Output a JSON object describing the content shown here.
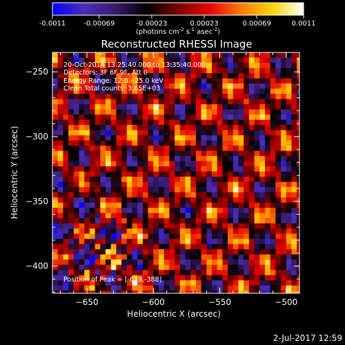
{
  "title": "Reconstructed RHESSI Image",
  "colorbar": {
    "ticks": [
      "-0.0011",
      "-0.00069",
      "-0.00023",
      "0.00023",
      "0.00069",
      "0.0011"
    ],
    "tick_values": [
      -0.0011,
      -0.00069,
      -0.00023,
      0.00023,
      0.00069,
      0.0011
    ],
    "range": [
      -0.0011,
      0.0011
    ],
    "unit_pre": "(photons cm",
    "unit_sup1": "-2",
    "unit_mid": " s",
    "unit_sup2": "-1",
    "unit_mid2": " asec",
    "unit_sup3": "-2",
    "unit_post": ")"
  },
  "annotations": {
    "time": "20-Oct-2014 13:25:40.000 to 13:35:40.000",
    "detectors": "Detectors: 3F 6F 9F, Att 0",
    "energy": "Energy Range: 12.0 - 25.0 keV",
    "clean": "Clean    Total counts: 3.65E+03",
    "peak": "Position of Peak = [-639,-388]"
  },
  "footer": "2-Jul-2017 12:59",
  "chart_data": {
    "type": "heatmap",
    "title": "Reconstructed RHESSI Image",
    "xlabel": "Heliocentric X (arcsec)",
    "ylabel": "Heliocentric Y (arcsec)",
    "xlim": [
      -676,
      -490
    ],
    "ylim": [
      -421,
      -235
    ],
    "xticks": [
      -650,
      -600,
      -550,
      -500
    ],
    "yticks": [
      -250,
      -300,
      -350,
      -400
    ],
    "xtick_labels": [
      "−650",
      "−600",
      "−550",
      "−500"
    ],
    "ytick_labels": [
      "−250",
      "−300",
      "−350",
      "−400"
    ],
    "value_range": [
      -0.0011,
      0.0011
    ],
    "peak_position": [
      -639,
      -388
    ],
    "colormap": [
      "#0000ff",
      "#4b2fb8",
      "#3a1a6e",
      "#000000",
      "#7a0000",
      "#e60000",
      "#ff7a00",
      "#ffd400",
      "#ffffff"
    ]
  }
}
